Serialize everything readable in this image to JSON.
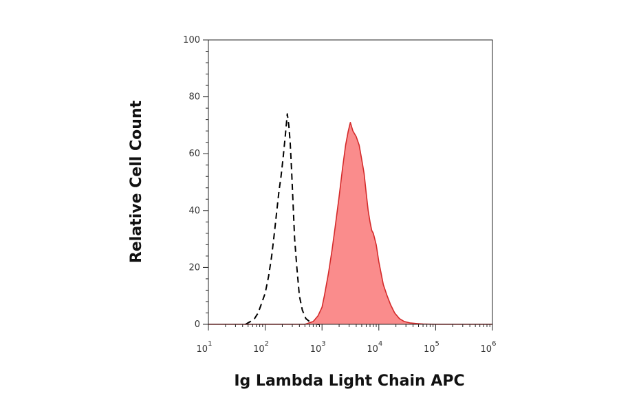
{
  "chart_data": {
    "type": "area",
    "title": "",
    "xlabel": "Ig Lambda Light Chain APC",
    "ylabel": "Relative Cell Count",
    "x_scale": "log",
    "xlim": [
      10,
      1000000
    ],
    "ylim": [
      0,
      100
    ],
    "y_ticks": [
      0,
      20,
      40,
      60,
      80,
      100
    ],
    "x_ticks": [
      {
        "value": 10,
        "base": "10",
        "exp": "1"
      },
      {
        "value": 100,
        "base": "10",
        "exp": "2"
      },
      {
        "value": 1000,
        "base": "10",
        "exp": "3"
      },
      {
        "value": 10000,
        "base": "10",
        "exp": "4"
      },
      {
        "value": 100000,
        "base": "10",
        "exp": "5"
      },
      {
        "value": 1000000,
        "base": "10",
        "exp": "6"
      }
    ],
    "grid": false,
    "series": [
      {
        "style": "dashed",
        "color": "#000000",
        "fill": "none",
        "x": [
          45,
          55,
          65,
          75,
          85,
          100,
          115,
          130,
          145,
          160,
          175,
          190,
          205,
          225,
          245,
          260,
          275,
          290,
          310,
          330,
          360,
          400,
          450,
          520,
          600,
          700,
          850,
          1000
        ],
        "y": [
          0,
          1,
          2,
          4,
          7,
          11,
          17,
          24,
          32,
          40,
          47,
          52,
          58,
          66,
          74,
          70,
          64,
          55,
          42,
          30,
          20,
          10,
          5,
          2,
          1,
          0.5,
          0,
          0
        ]
      },
      {
        "style": "solid",
        "color": "#d42a2a",
        "fill": "#fa8c8c",
        "x": [
          10,
          500,
          700,
          850,
          1000,
          1100,
          1300,
          1500,
          1700,
          2000,
          2300,
          2600,
          2900,
          3150,
          3500,
          4000,
          4500,
          5000,
          5500,
          6000,
          6500,
          7000,
          7500,
          8000,
          9000,
          10000,
          12000,
          14000,
          16000,
          19000,
          23000,
          28000,
          35000,
          45000,
          60000,
          100000,
          1000000
        ],
        "y": [
          0,
          0,
          1,
          3,
          6,
          10,
          18,
          26,
          34,
          45,
          55,
          63,
          68,
          71,
          68,
          66,
          63,
          58,
          53,
          46,
          40,
          36,
          33,
          32,
          28,
          22,
          14,
          10,
          7,
          4,
          2,
          1,
          0.5,
          0.3,
          0.1,
          0,
          0
        ]
      }
    ]
  }
}
